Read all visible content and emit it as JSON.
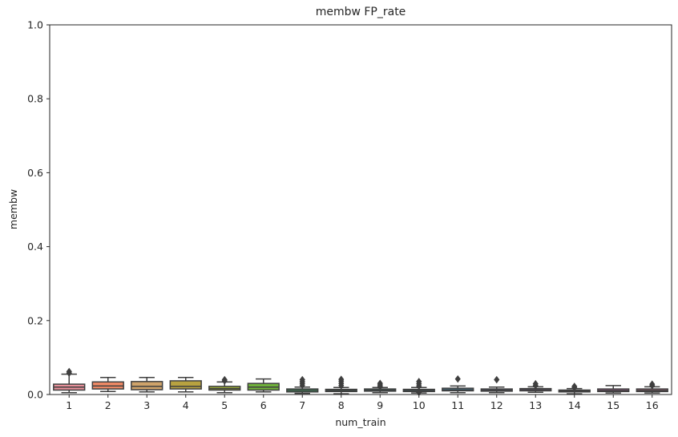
{
  "chart_data": {
    "type": "box",
    "title": "membw FP_rate",
    "xlabel": "num_train",
    "ylabel": "membw",
    "ylim": [
      0,
      1.0
    ],
    "yticks": [
      "0.0",
      "0.2",
      "0.4",
      "0.6",
      "0.8",
      "1.0"
    ],
    "grid": false,
    "categories": [
      "1",
      "2",
      "3",
      "4",
      "5",
      "6",
      "7",
      "8",
      "9",
      "10",
      "11",
      "12",
      "13",
      "14",
      "15",
      "16"
    ],
    "colors": [
      "#e8909a",
      "#f08a66",
      "#cfa36a",
      "#b8a240",
      "#9bac38",
      "#6fb13a",
      "#3cb068",
      "#3fb38f",
      "#3fb2a8",
      "#42b0bf",
      "#4aa8d8",
      "#8f9ae8",
      "#b98be8",
      "#d880e3",
      "#e47cc8",
      "#e98aa6"
    ],
    "series": [
      {
        "min": 0.005,
        "q1": 0.012,
        "median": 0.02,
        "q3": 0.028,
        "max": 0.055,
        "outliers": [
          0.058,
          0.062
        ]
      },
      {
        "min": 0.008,
        "q1": 0.015,
        "median": 0.023,
        "q3": 0.034,
        "max": 0.046,
        "outliers": []
      },
      {
        "min": 0.007,
        "q1": 0.013,
        "median": 0.022,
        "q3": 0.035,
        "max": 0.046,
        "outliers": []
      },
      {
        "min": 0.007,
        "q1": 0.015,
        "median": 0.022,
        "q3": 0.037,
        "max": 0.046,
        "outliers": []
      },
      {
        "min": 0.005,
        "q1": 0.012,
        "median": 0.016,
        "q3": 0.022,
        "max": 0.034,
        "outliers": [
          0.037,
          0.04
        ]
      },
      {
        "min": 0.007,
        "q1": 0.012,
        "median": 0.02,
        "q3": 0.03,
        "max": 0.042,
        "outliers": []
      },
      {
        "min": 0.003,
        "q1": 0.007,
        "median": 0.011,
        "q3": 0.015,
        "max": 0.02,
        "outliers": [
          0.025,
          0.03,
          0.035,
          0.04
        ]
      },
      {
        "min": 0.002,
        "q1": 0.008,
        "median": 0.011,
        "q3": 0.014,
        "max": 0.019,
        "outliers": [
          0.024,
          0.03,
          0.036,
          0.041
        ]
      },
      {
        "min": 0.005,
        "q1": 0.009,
        "median": 0.012,
        "q3": 0.015,
        "max": 0.019,
        "outliers": [
          0.022,
          0.026,
          0.03
        ]
      },
      {
        "min": 0.004,
        "q1": 0.008,
        "median": 0.011,
        "q3": 0.014,
        "max": 0.019,
        "outliers": [
          0.006,
          0.023,
          0.029,
          0.035
        ]
      },
      {
        "min": 0.005,
        "q1": 0.01,
        "median": 0.013,
        "q3": 0.017,
        "max": 0.023,
        "outliers": [
          0.042
        ]
      },
      {
        "min": 0.005,
        "q1": 0.009,
        "median": 0.012,
        "q3": 0.015,
        "max": 0.02,
        "outliers": [
          0.04
        ]
      },
      {
        "min": 0.006,
        "q1": 0.01,
        "median": 0.013,
        "q3": 0.016,
        "max": 0.021,
        "outliers": [
          0.024,
          0.029
        ]
      },
      {
        "min": 0.002,
        "q1": 0.007,
        "median": 0.01,
        "q3": 0.012,
        "max": 0.016,
        "outliers": [
          0.019,
          0.022
        ]
      },
      {
        "min": 0.004,
        "q1": 0.008,
        "median": 0.011,
        "q3": 0.015,
        "max": 0.024,
        "outliers": []
      },
      {
        "min": 0.004,
        "q1": 0.008,
        "median": 0.011,
        "q3": 0.015,
        "max": 0.021,
        "outliers": [
          0.024,
          0.028
        ]
      }
    ]
  }
}
